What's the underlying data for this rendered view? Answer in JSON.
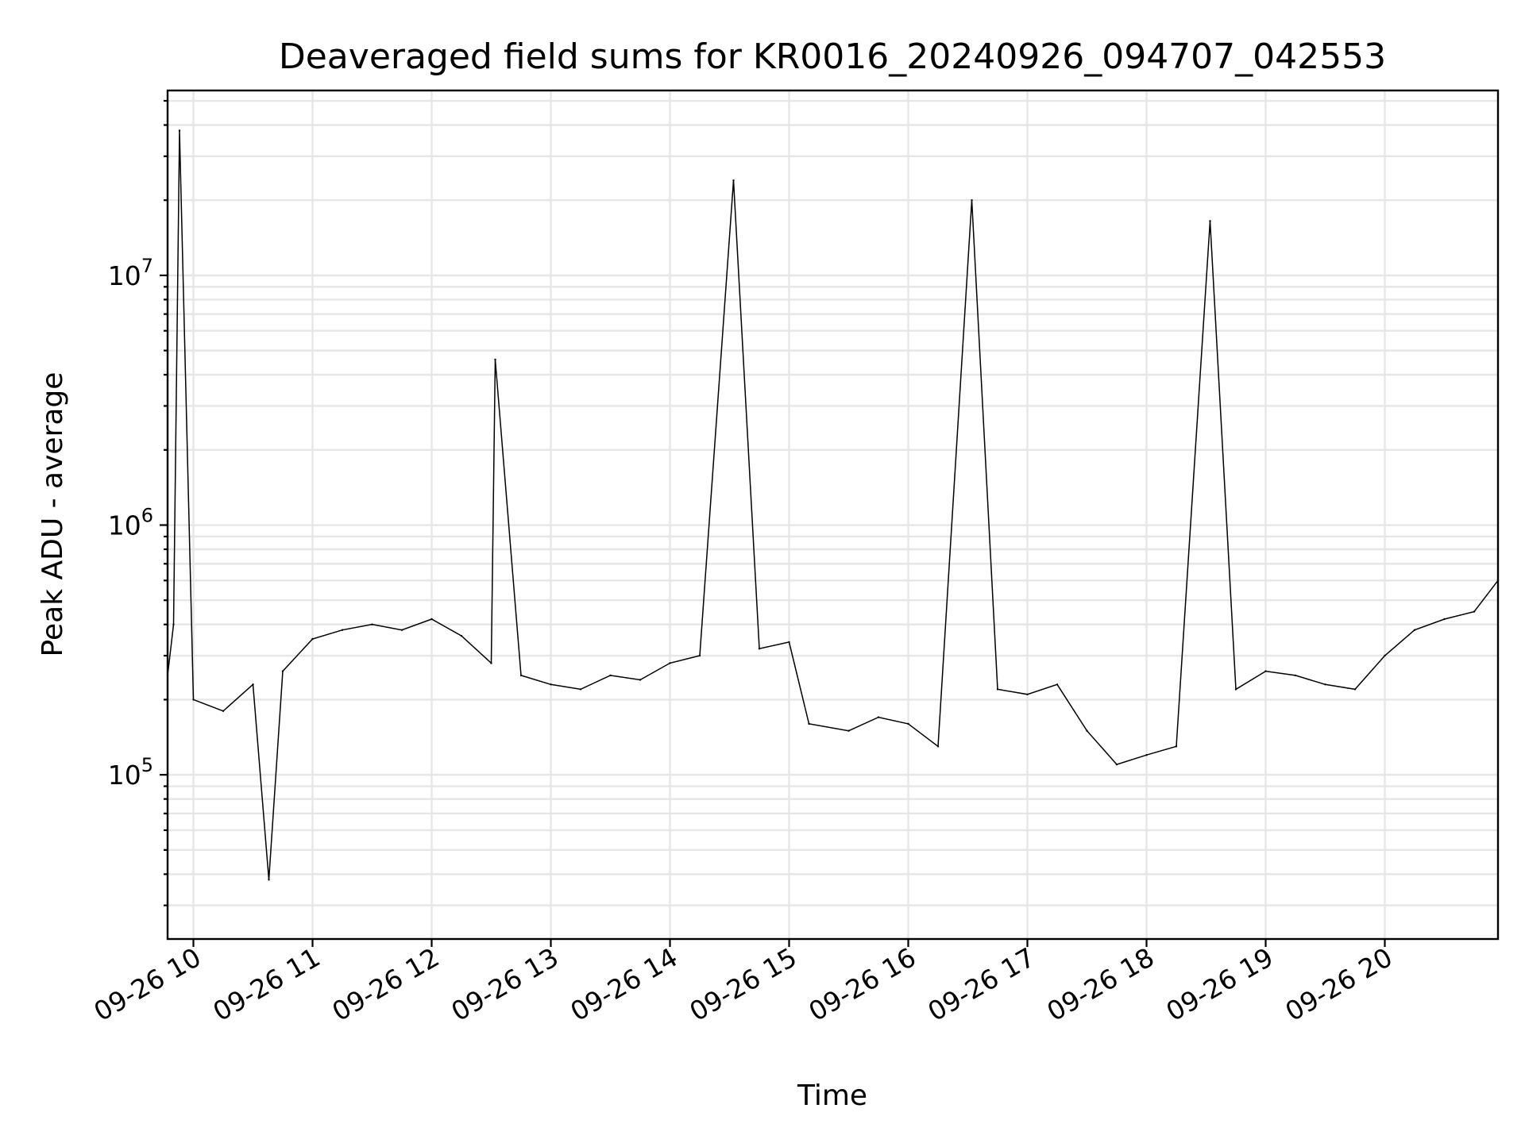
{
  "chart_data": {
    "type": "line",
    "title": "Deaveraged field sums for KR0016_20240926_094707_042553",
    "xlabel": "Time",
    "ylabel": "Peak ADU - average",
    "yscale": "log",
    "grid": "on (major and minor)",
    "legend": "none",
    "line_color": "#000000",
    "xlim": [
      "2024-09-26 09:47",
      "2024-09-26 20:57"
    ],
    "ylim": [
      22000,
      55000000
    ],
    "x_ticks": [
      "09-26 10",
      "09-26 11",
      "09-26 12",
      "09-26 13",
      "09-26 14",
      "09-26 15",
      "09-26 16",
      "09-26 17",
      "09-26 18",
      "09-26 19",
      "09-26 20"
    ],
    "y_ticks": [
      {
        "base": "10",
        "exp": "5",
        "value": 100000
      },
      {
        "base": "10",
        "exp": "6",
        "value": 1000000
      },
      {
        "base": "10",
        "exp": "7",
        "value": 10000000
      }
    ],
    "series": [
      {
        "x": [
          "2024-09-26 09:47",
          "2024-09-26 09:50",
          "2024-09-26 09:53",
          "2024-09-26 10:00",
          "2024-09-26 10:15",
          "2024-09-26 10:30",
          "2024-09-26 10:38",
          "2024-09-26 10:45",
          "2024-09-26 11:00",
          "2024-09-26 11:15",
          "2024-09-26 11:30",
          "2024-09-26 11:45",
          "2024-09-26 12:00",
          "2024-09-26 12:15",
          "2024-09-26 12:30",
          "2024-09-26 12:32",
          "2024-09-26 12:45",
          "2024-09-26 13:00",
          "2024-09-26 13:15",
          "2024-09-26 13:30",
          "2024-09-26 13:45",
          "2024-09-26 14:00",
          "2024-09-26 14:15",
          "2024-09-26 14:32",
          "2024-09-26 14:45",
          "2024-09-26 15:00",
          "2024-09-26 15:10",
          "2024-09-26 15:30",
          "2024-09-26 15:45",
          "2024-09-26 16:00",
          "2024-09-26 16:15",
          "2024-09-26 16:32",
          "2024-09-26 16:45",
          "2024-09-26 17:00",
          "2024-09-26 17:15",
          "2024-09-26 17:30",
          "2024-09-26 17:45",
          "2024-09-26 18:00",
          "2024-09-26 18:15",
          "2024-09-26 18:32",
          "2024-09-26 18:45",
          "2024-09-26 19:00",
          "2024-09-26 19:15",
          "2024-09-26 19:30",
          "2024-09-26 19:45",
          "2024-09-26 20:00",
          "2024-09-26 20:15",
          "2024-09-26 20:30",
          "2024-09-26 20:45",
          "2024-09-26 20:57"
        ],
        "y": [
          250000,
          400000,
          38000000,
          200000,
          180000,
          230000,
          38000,
          260000,
          350000,
          380000,
          400000,
          380000,
          420000,
          360000,
          280000,
          4600000,
          250000,
          230000,
          220000,
          250000,
          240000,
          280000,
          300000,
          24000000,
          320000,
          340000,
          160000,
          150000,
          170000,
          160000,
          130000,
          20000000,
          220000,
          210000,
          230000,
          150000,
          110000,
          120000,
          130000,
          16500000,
          220000,
          260000,
          250000,
          230000,
          220000,
          300000,
          380000,
          420000,
          450000,
          600000
        ]
      }
    ]
  }
}
